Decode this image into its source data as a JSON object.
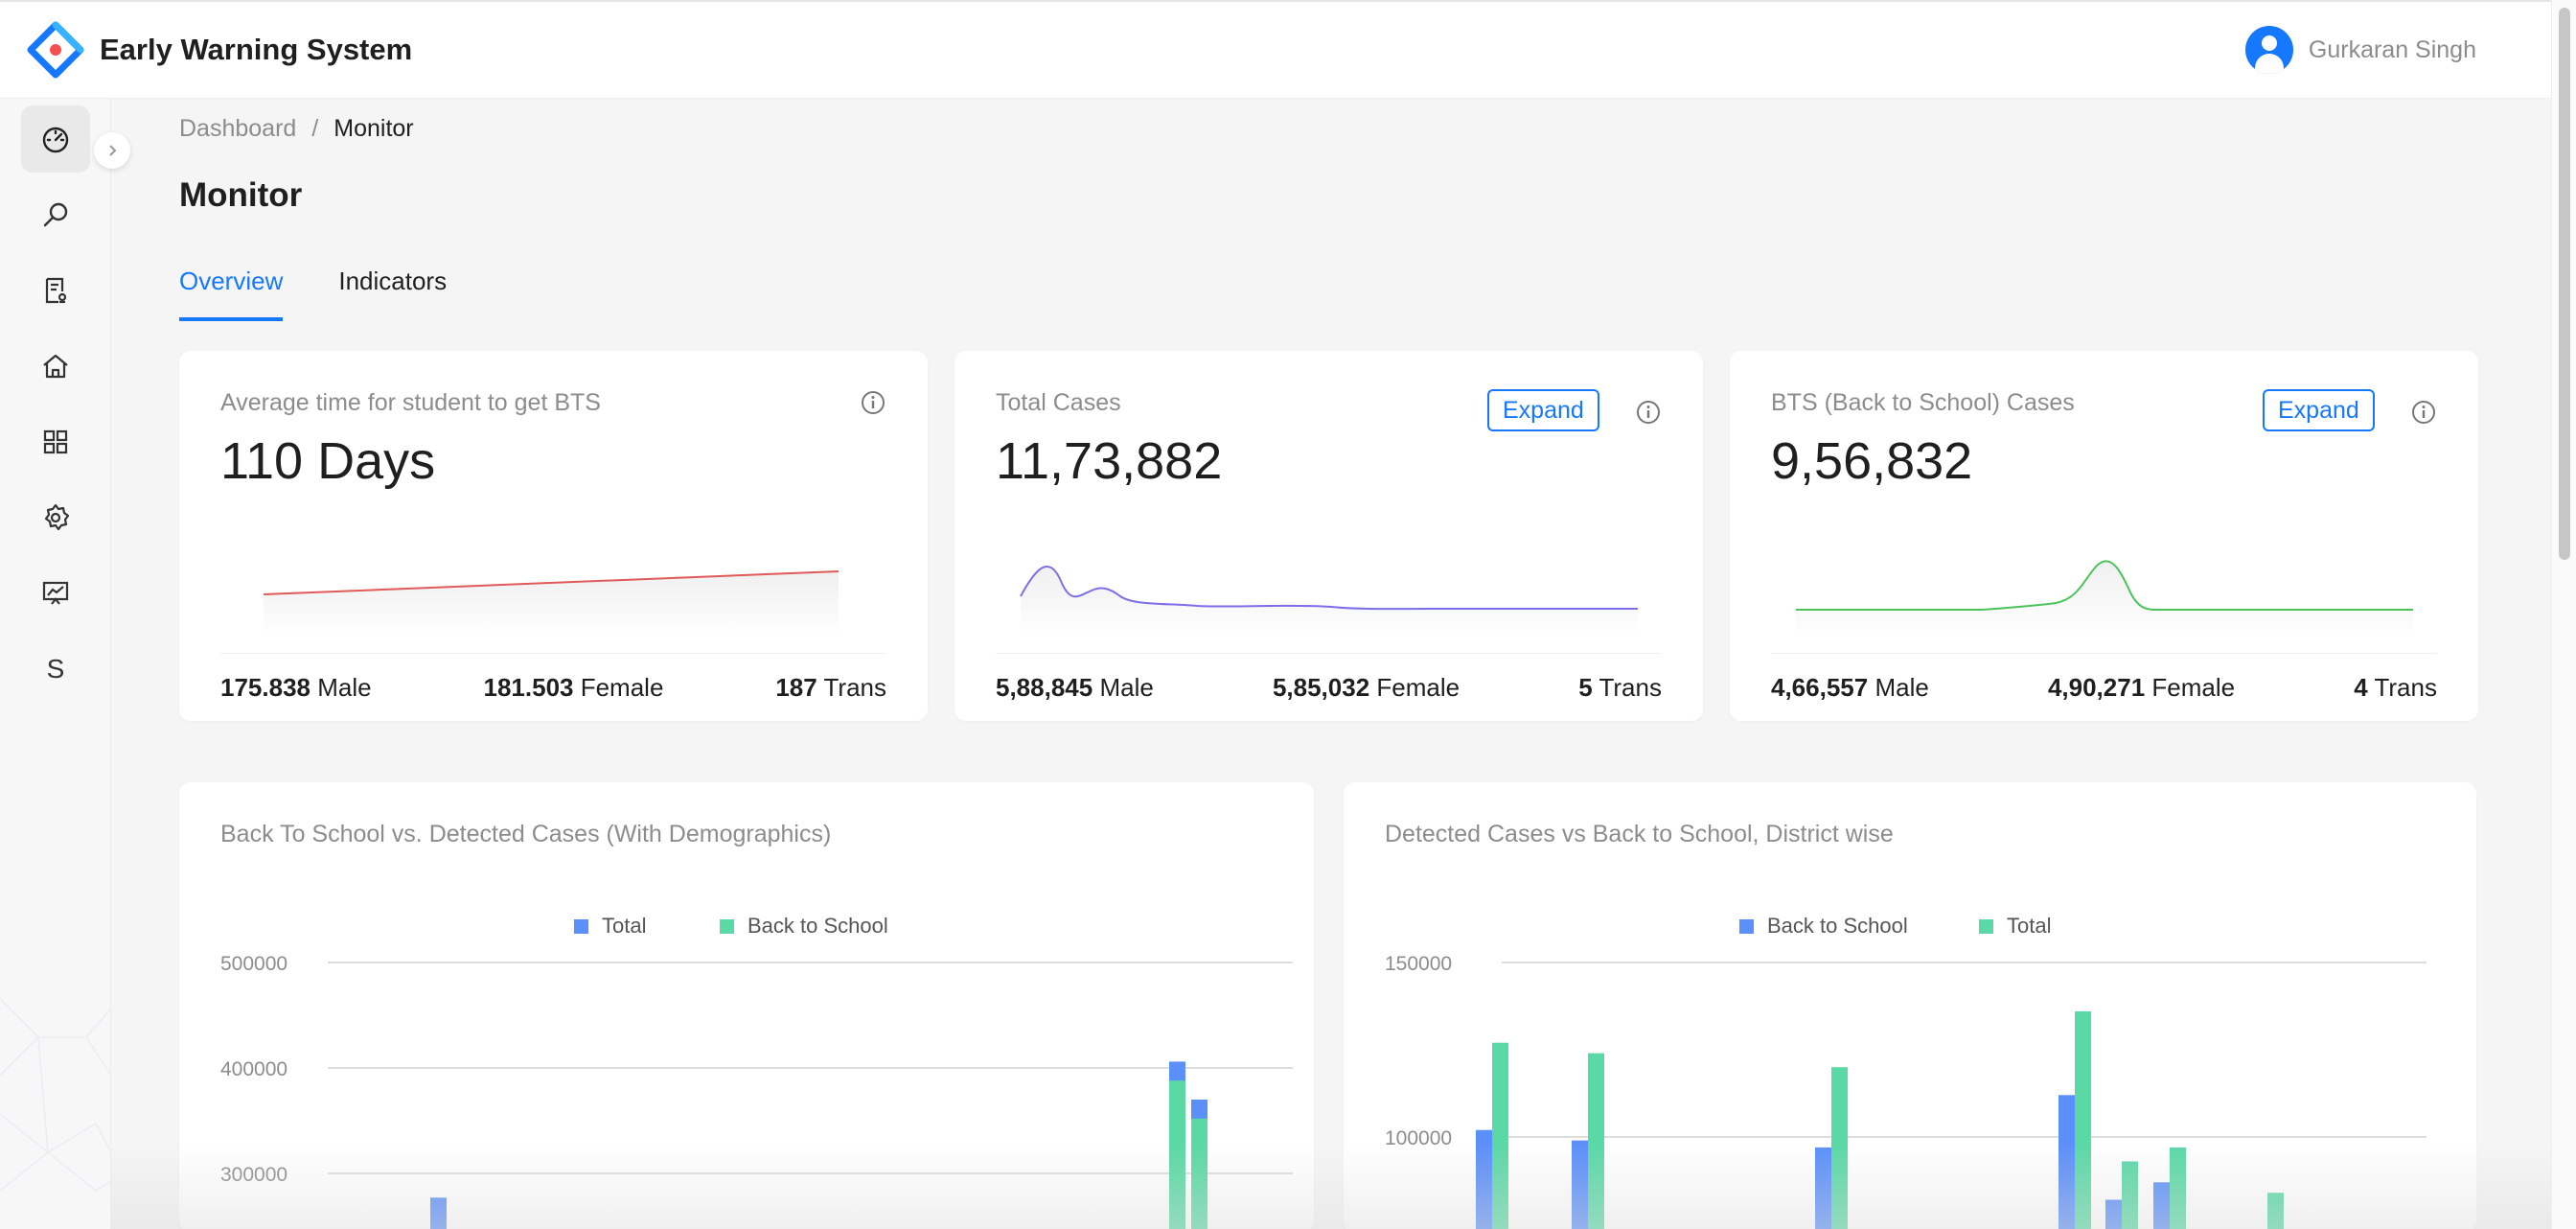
{
  "app": {
    "title": "Early Warning System",
    "logo_icon": "diamond-logo-icon"
  },
  "user": {
    "name": "Gurkaran Singh"
  },
  "sidebar": {
    "items": [
      {
        "name": "dashboard",
        "icon": "dashboard-gauge-icon",
        "active": true
      },
      {
        "name": "search",
        "icon": "search-icon",
        "active": false
      },
      {
        "name": "reports",
        "icon": "report-icon",
        "active": false
      },
      {
        "name": "home",
        "icon": "home-icon",
        "active": false
      },
      {
        "name": "apps",
        "icon": "grid-icon",
        "active": false
      },
      {
        "name": "settings",
        "icon": "gear-icon",
        "active": false
      },
      {
        "name": "presentation",
        "icon": "presentation-chart-icon",
        "active": false
      },
      {
        "name": "s",
        "label": "S",
        "active": false
      }
    ]
  },
  "breadcrumb": {
    "root": "Dashboard",
    "separator": "/",
    "current": "Monitor"
  },
  "page": {
    "title": "Monitor"
  },
  "tabs": [
    {
      "label": "Overview",
      "active": true
    },
    {
      "label": "Indicators",
      "active": false
    }
  ],
  "stats": [
    {
      "label": "Average time for student to get BTS",
      "value": "110 Days",
      "has_expand": false,
      "line_color": "#e05a5a",
      "footer": [
        {
          "value": "175.838",
          "label": "Male"
        },
        {
          "value": "181.503",
          "label": "Female"
        },
        {
          "value": "187",
          "label": "Trans"
        }
      ]
    },
    {
      "label": "Total Cases",
      "value": "11,73,882",
      "has_expand": true,
      "expand_label": "Expand",
      "line_color": "#7b6ee8",
      "footer": [
        {
          "value": "5,88,845",
          "label": "Male"
        },
        {
          "value": "5,85,032",
          "label": "Female"
        },
        {
          "value": "5",
          "label": "Trans"
        }
      ]
    },
    {
      "label": "BTS (Back to School) Cases",
      "value": "9,56,832",
      "has_expand": true,
      "expand_label": "Expand",
      "line_color": "#4cc35a",
      "footer": [
        {
          "value": "4,66,557",
          "label": "Male"
        },
        {
          "value": "4,90,271",
          "label": "Female"
        },
        {
          "value": "4",
          "label": "Trans"
        }
      ]
    }
  ],
  "chart_data": [
    {
      "type": "bar",
      "title": "Back To School vs. Detected Cases (With Demographics)",
      "legend_position": "top-center",
      "series": [
        {
          "name": "Total",
          "color": "#5b8ff9"
        },
        {
          "name": "Back to School",
          "color": "#5ad8a6"
        }
      ],
      "y_ticks": [
        500000,
        400000,
        300000
      ],
      "bars": [
        {
          "series": "Total",
          "value": 277000
        },
        {
          "series": "Total",
          "value": 406000
        },
        {
          "series": "Back to School",
          "value": 388000
        },
        {
          "series": "Total",
          "value": 370000
        },
        {
          "series": "Back to School",
          "value": 352000
        }
      ]
    },
    {
      "type": "bar",
      "title": "Detected Cases vs Back to School, District wise",
      "legend_position": "top-center",
      "series": [
        {
          "name": "Back to School",
          "color": "#5b8ff9"
        },
        {
          "name": "Total",
          "color": "#5ad8a6"
        }
      ],
      "y_ticks": [
        150000,
        100000
      ],
      "bars": [
        {
          "series": "Back to School",
          "value": 102000
        },
        {
          "series": "Total",
          "value": 127000
        },
        {
          "series": "Back to School",
          "value": 99000
        },
        {
          "series": "Total",
          "value": 124000
        },
        {
          "series": "Back to School",
          "value": 97000
        },
        {
          "series": "Total",
          "value": 120000
        },
        {
          "series": "Back to School",
          "value": 112000
        },
        {
          "series": "Total",
          "value": 136000
        },
        {
          "series": "Back to School",
          "value": 82000
        },
        {
          "series": "Total",
          "value": 93000
        },
        {
          "series": "Back to School",
          "value": 87000
        },
        {
          "series": "Total",
          "value": 97000
        },
        {
          "series": "Total",
          "value": 84000
        }
      ]
    }
  ]
}
